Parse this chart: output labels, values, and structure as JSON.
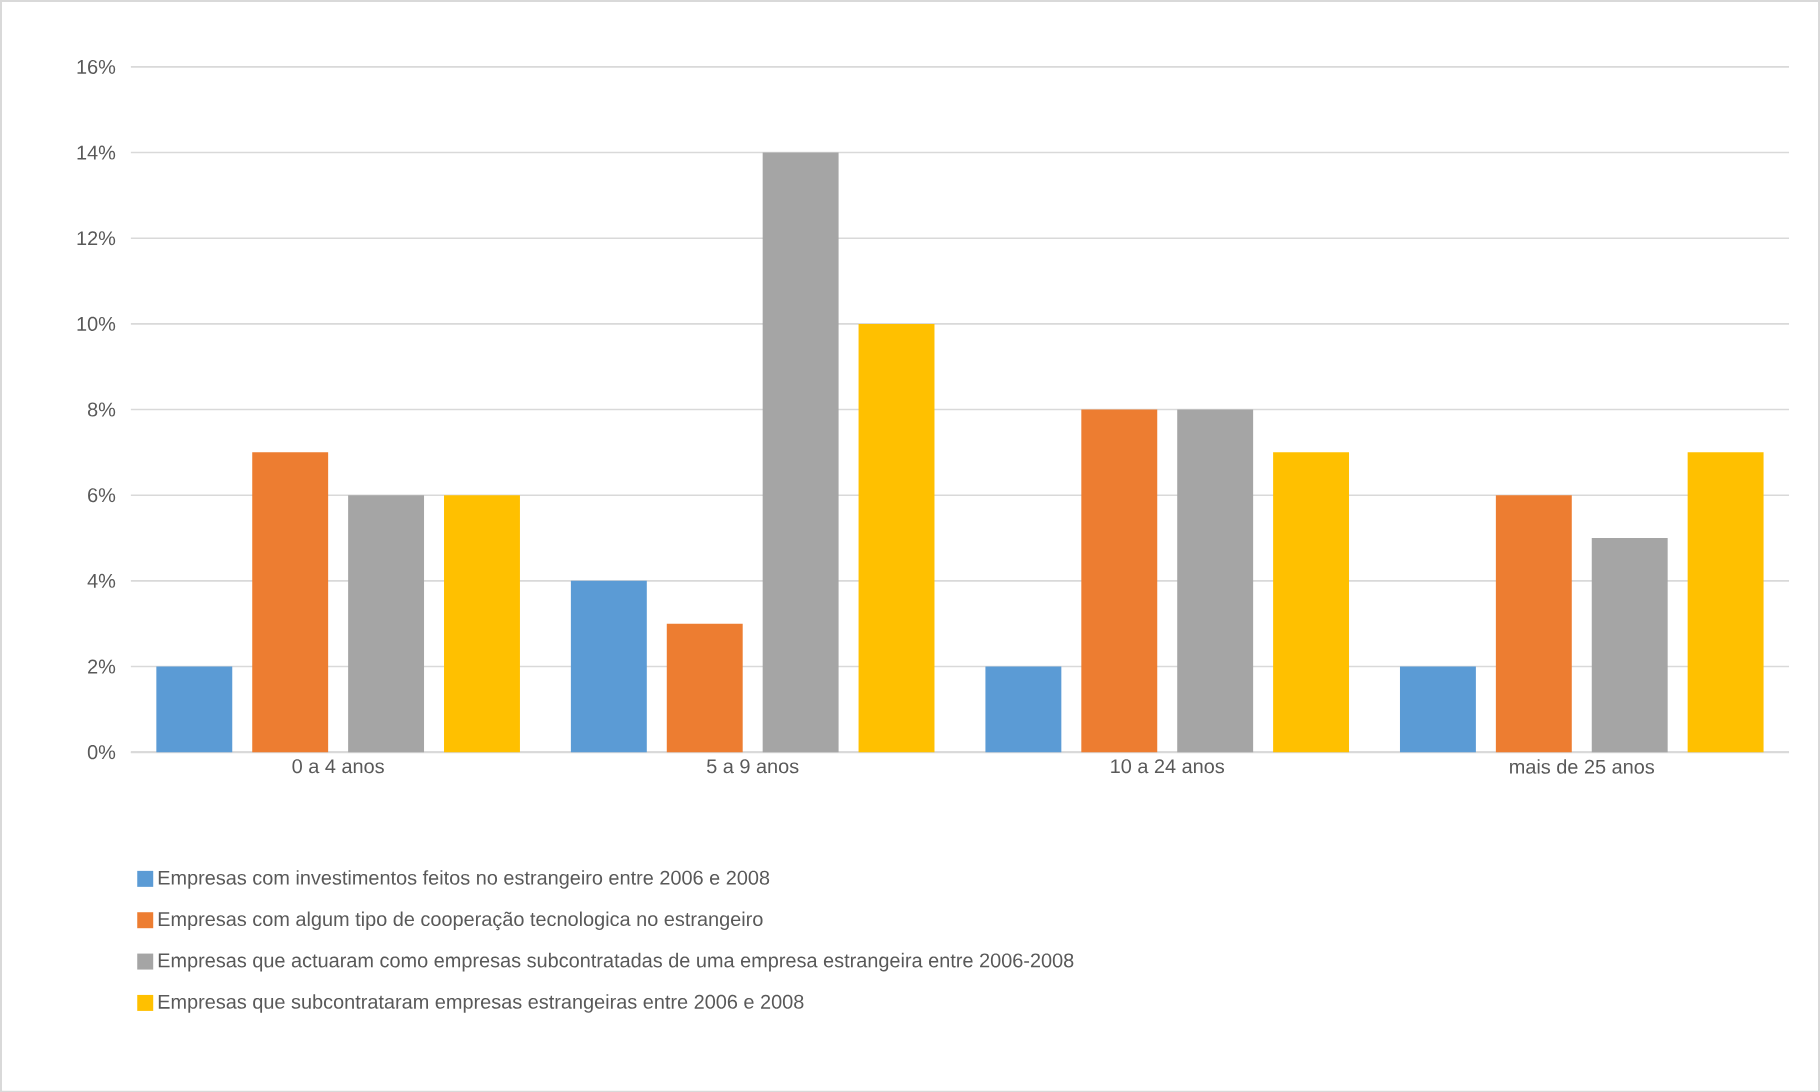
{
  "chart_data": {
    "type": "bar",
    "categories": [
      "0 a 4 anos",
      "5 a 9 anos",
      "10 a 24 anos",
      "mais de 25 anos"
    ],
    "series": [
      {
        "name": "Empresas com investimentos feitos no estrangeiro entre 2006 e 2008",
        "color": "#5b9bd5",
        "values": [
          2,
          4,
          2,
          2
        ]
      },
      {
        "name": "Empresas com algum tipo de cooperação tecnologica no estrangeiro",
        "color": "#ed7d31",
        "values": [
          7,
          3,
          8,
          6
        ]
      },
      {
        "name": "Empresas que actuaram como empresas subcontratadas de uma empresa estrangeira entre 2006-2008",
        "color": "#a5a5a5",
        "values": [
          6,
          14,
          8,
          5
        ]
      },
      {
        "name": "Empresas que subcontrataram empresas estrangeiras entre 2006 e 2008",
        "color": "#ffc000",
        "values": [
          6,
          10,
          7,
          7
        ]
      }
    ],
    "ylim": [
      0,
      16
    ],
    "yticks": [
      {
        "value": 0,
        "label": "0%"
      },
      {
        "value": 2,
        "label": "2%"
      },
      {
        "value": 4,
        "label": "4%"
      },
      {
        "value": 6,
        "label": "6%"
      },
      {
        "value": 8,
        "label": "8%"
      },
      {
        "value": 10,
        "label": "10%"
      },
      {
        "value": 12,
        "label": "12%"
      },
      {
        "value": 14,
        "label": "14%"
      },
      {
        "value": 16,
        "label": "16%"
      }
    ],
    "grid": "y",
    "legend": "bottom"
  }
}
